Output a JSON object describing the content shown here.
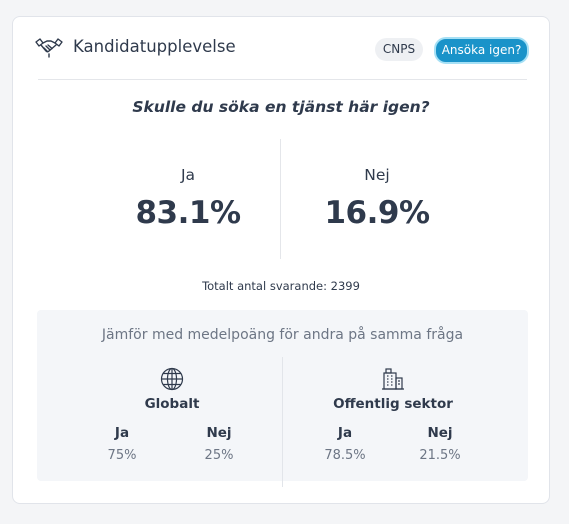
{
  "card": {
    "title": "Kandidatupplevelse",
    "icon": "handshake-icon",
    "badge": "CNPS",
    "action_button": "Ansöka igen?"
  },
  "question": "Skulle du söka en tjänst här igen?",
  "answers": [
    {
      "label": "Ja",
      "value": "83.1%"
    },
    {
      "label": "Nej",
      "value": "16.9%"
    }
  ],
  "total": "Totalt antal svarande: 2399",
  "compare": {
    "title": "Jämför med medelpoäng för andra på samma fråga",
    "columns": [
      {
        "icon": "globe-icon",
        "title": "Globalt",
        "yes_label": "Ja",
        "yes_value": "75%",
        "no_label": "Nej",
        "no_value": "25%"
      },
      {
        "icon": "building-icon",
        "title": "Offentlig sektor",
        "yes_label": "Ja",
        "yes_value": "78.5%",
        "no_label": "Nej",
        "no_value": "21.5%"
      }
    ]
  },
  "colors": {
    "accent": "#1a93c9",
    "text": "#2f3a4c",
    "muted": "#6d7685",
    "panel": "#f4f6f9"
  }
}
